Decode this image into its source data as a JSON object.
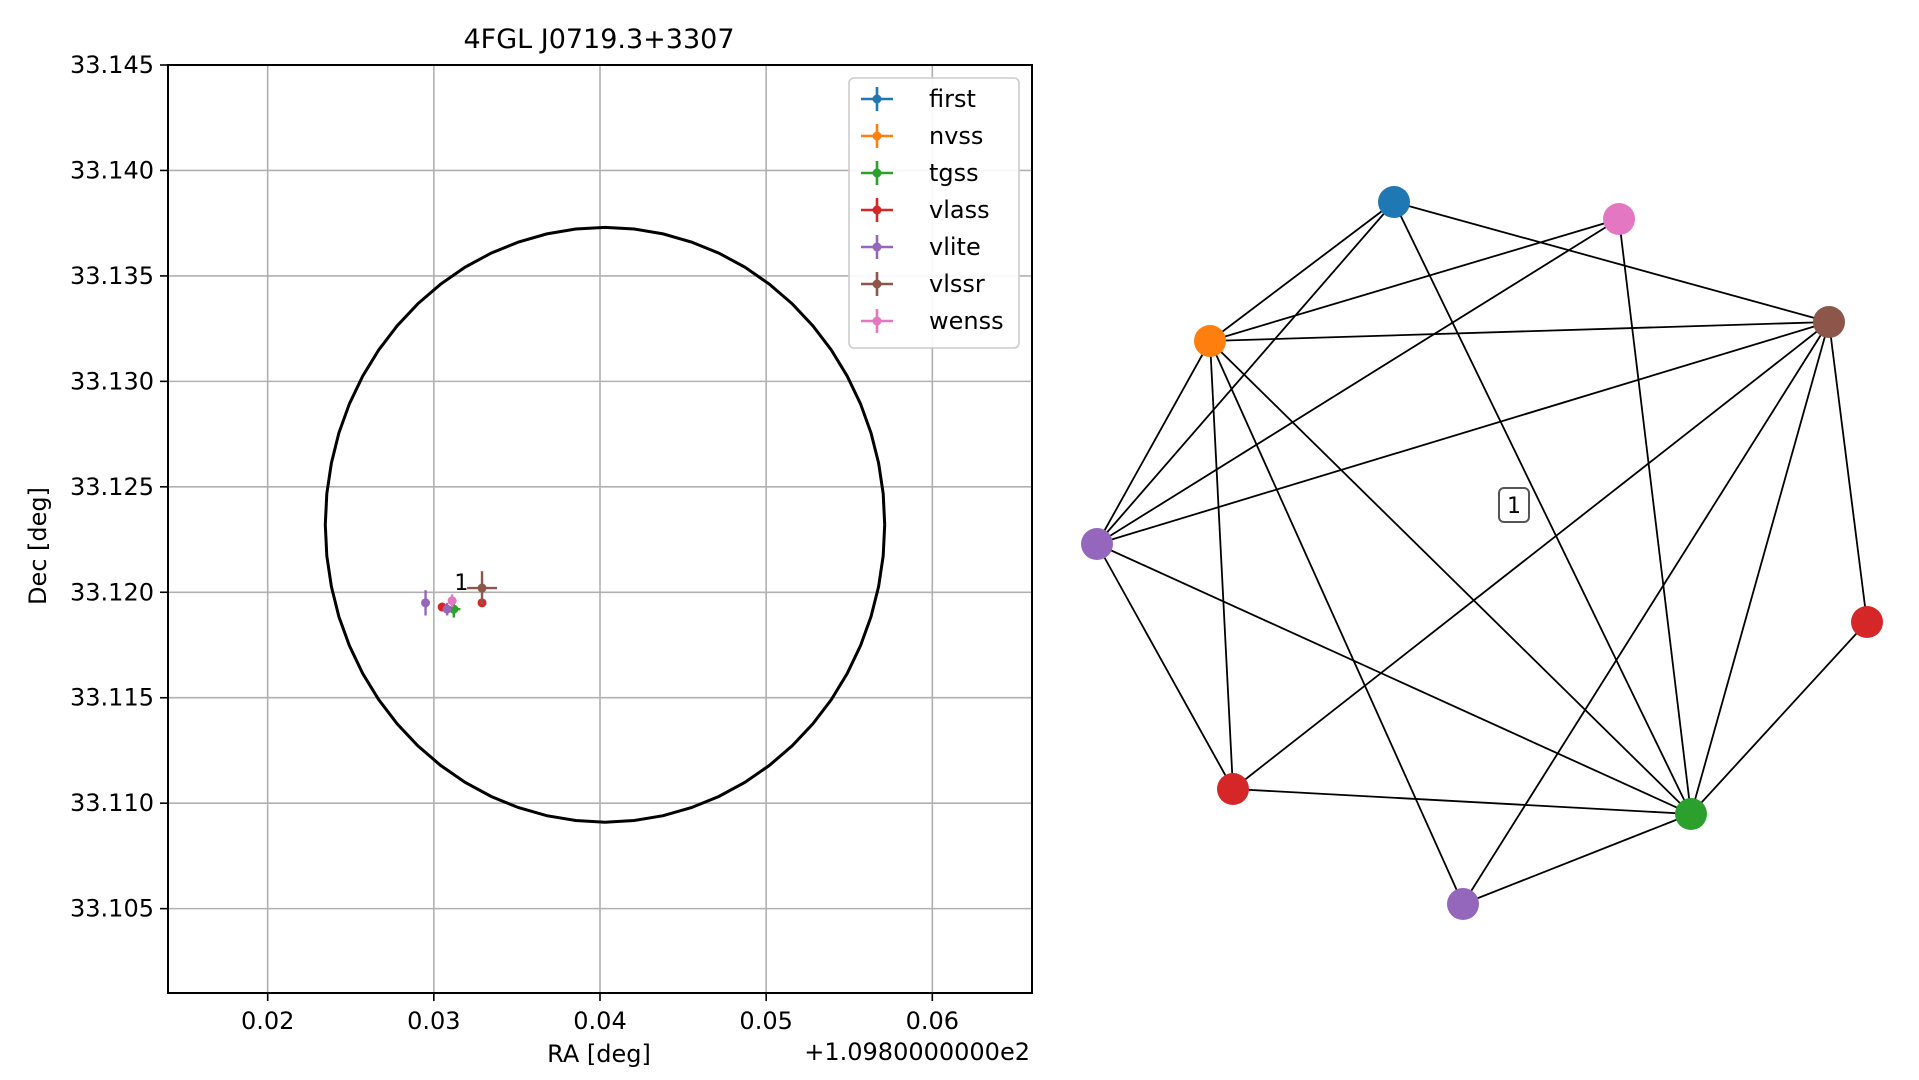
{
  "chart_data": [
    {
      "type": "scatter",
      "title": "4FGL J0719.3+3307",
      "xlabel": "RA [deg]",
      "ylabel": "Dec [deg]",
      "x_offset_text": "+1.0980000000e2",
      "xlim": [
        109.814,
        109.866
      ],
      "ylim": [
        33.101,
        33.145
      ],
      "x_ticks": [
        109.82,
        109.83,
        109.84,
        109.85,
        109.86
      ],
      "x_tick_labels": [
        "0.02",
        "0.03",
        "0.04",
        "0.05",
        "0.06"
      ],
      "y_ticks": [
        33.105,
        33.11,
        33.115,
        33.12,
        33.125,
        33.13,
        33.135,
        33.14,
        33.145
      ],
      "y_tick_labels": [
        "33.105",
        "33.110",
        "33.115",
        "33.120",
        "33.125",
        "33.130",
        "33.135",
        "33.140",
        "33.145"
      ],
      "grid": true,
      "legend_position": "top-right",
      "circle": {
        "center": [
          109.8403,
          33.1232
        ],
        "radius_dec": 0.0141
      },
      "annotation": {
        "text": "1",
        "x": 109.8325,
        "y": 33.1203
      },
      "series": [
        {
          "name": "first",
          "color": "#1f77b4",
          "points": []
        },
        {
          "name": "nvss",
          "color": "#ff7f0e",
          "points": []
        },
        {
          "name": "tgss",
          "color": "#2ca02c",
          "points": [
            {
              "x": 109.8312,
              "y": 33.1192,
              "xerr": 0.0004,
              "yerr": 0.0004
            }
          ]
        },
        {
          "name": "vlass",
          "color": "#d62728",
          "points": [
            {
              "x": 109.8305,
              "y": 33.1193,
              "xerr": 0.0002,
              "yerr": 0.0001
            },
            {
              "x": 109.8329,
              "y": 33.1195,
              "xerr": 0.0001,
              "yerr": 0.0001
            }
          ]
        },
        {
          "name": "vlite",
          "color": "#9467bd",
          "points": [
            {
              "x": 109.8295,
              "y": 33.1195,
              "xerr": 0.0001,
              "yerr": 0.0006
            },
            {
              "x": 109.8308,
              "y": 33.1192,
              "xerr": 0.0002,
              "yerr": 0.0003
            }
          ]
        },
        {
          "name": "vlssr",
          "color": "#8c564b",
          "points": [
            {
              "x": 109.8329,
              "y": 33.1202,
              "xerr": 0.0009,
              "yerr": 0.0008
            }
          ]
        },
        {
          "name": "wenss",
          "color": "#e377c2",
          "points": [
            {
              "x": 109.8311,
              "y": 33.1196,
              "xerr": 0.0002,
              "yerr": 0.0003
            }
          ]
        }
      ]
    },
    {
      "type": "network",
      "label": "1",
      "nodes": [
        {
          "id": "first",
          "color": "#1f77b4"
        },
        {
          "id": "wenss",
          "color": "#e377c2"
        },
        {
          "id": "nvss",
          "color": "#ff7f0e"
        },
        {
          "id": "vlssr",
          "color": "#8c564b"
        },
        {
          "id": "vlite_a",
          "color": "#9467bd"
        },
        {
          "id": "vlass_a",
          "color": "#d62728"
        },
        {
          "id": "vlass_b",
          "color": "#d62728"
        },
        {
          "id": "tgss",
          "color": "#2ca02c"
        },
        {
          "id": "vlite_b",
          "color": "#9467bd"
        }
      ],
      "edges": [
        [
          "first",
          "nvss"
        ],
        [
          "first",
          "vlite_a"
        ],
        [
          "first",
          "vlssr"
        ],
        [
          "first",
          "tgss"
        ],
        [
          "wenss",
          "nvss"
        ],
        [
          "wenss",
          "vlite_a"
        ],
        [
          "wenss",
          "tgss"
        ],
        [
          "nvss",
          "vlssr"
        ],
        [
          "nvss",
          "vlite_a"
        ],
        [
          "nvss",
          "vlass_b"
        ],
        [
          "nvss",
          "tgss"
        ],
        [
          "nvss",
          "vlite_b"
        ],
        [
          "vlssr",
          "vlite_a"
        ],
        [
          "vlssr",
          "vlass_a"
        ],
        [
          "vlssr",
          "tgss"
        ],
        [
          "vlssr",
          "vlass_b"
        ],
        [
          "vlite_a",
          "vlass_b"
        ],
        [
          "vlite_a",
          "tgss"
        ],
        [
          "vlass_a",
          "tgss"
        ],
        [
          "vlass_b",
          "tgss"
        ],
        [
          "tgss",
          "vlite_b"
        ],
        [
          "vlite_b",
          "vlssr"
        ]
      ]
    }
  ]
}
